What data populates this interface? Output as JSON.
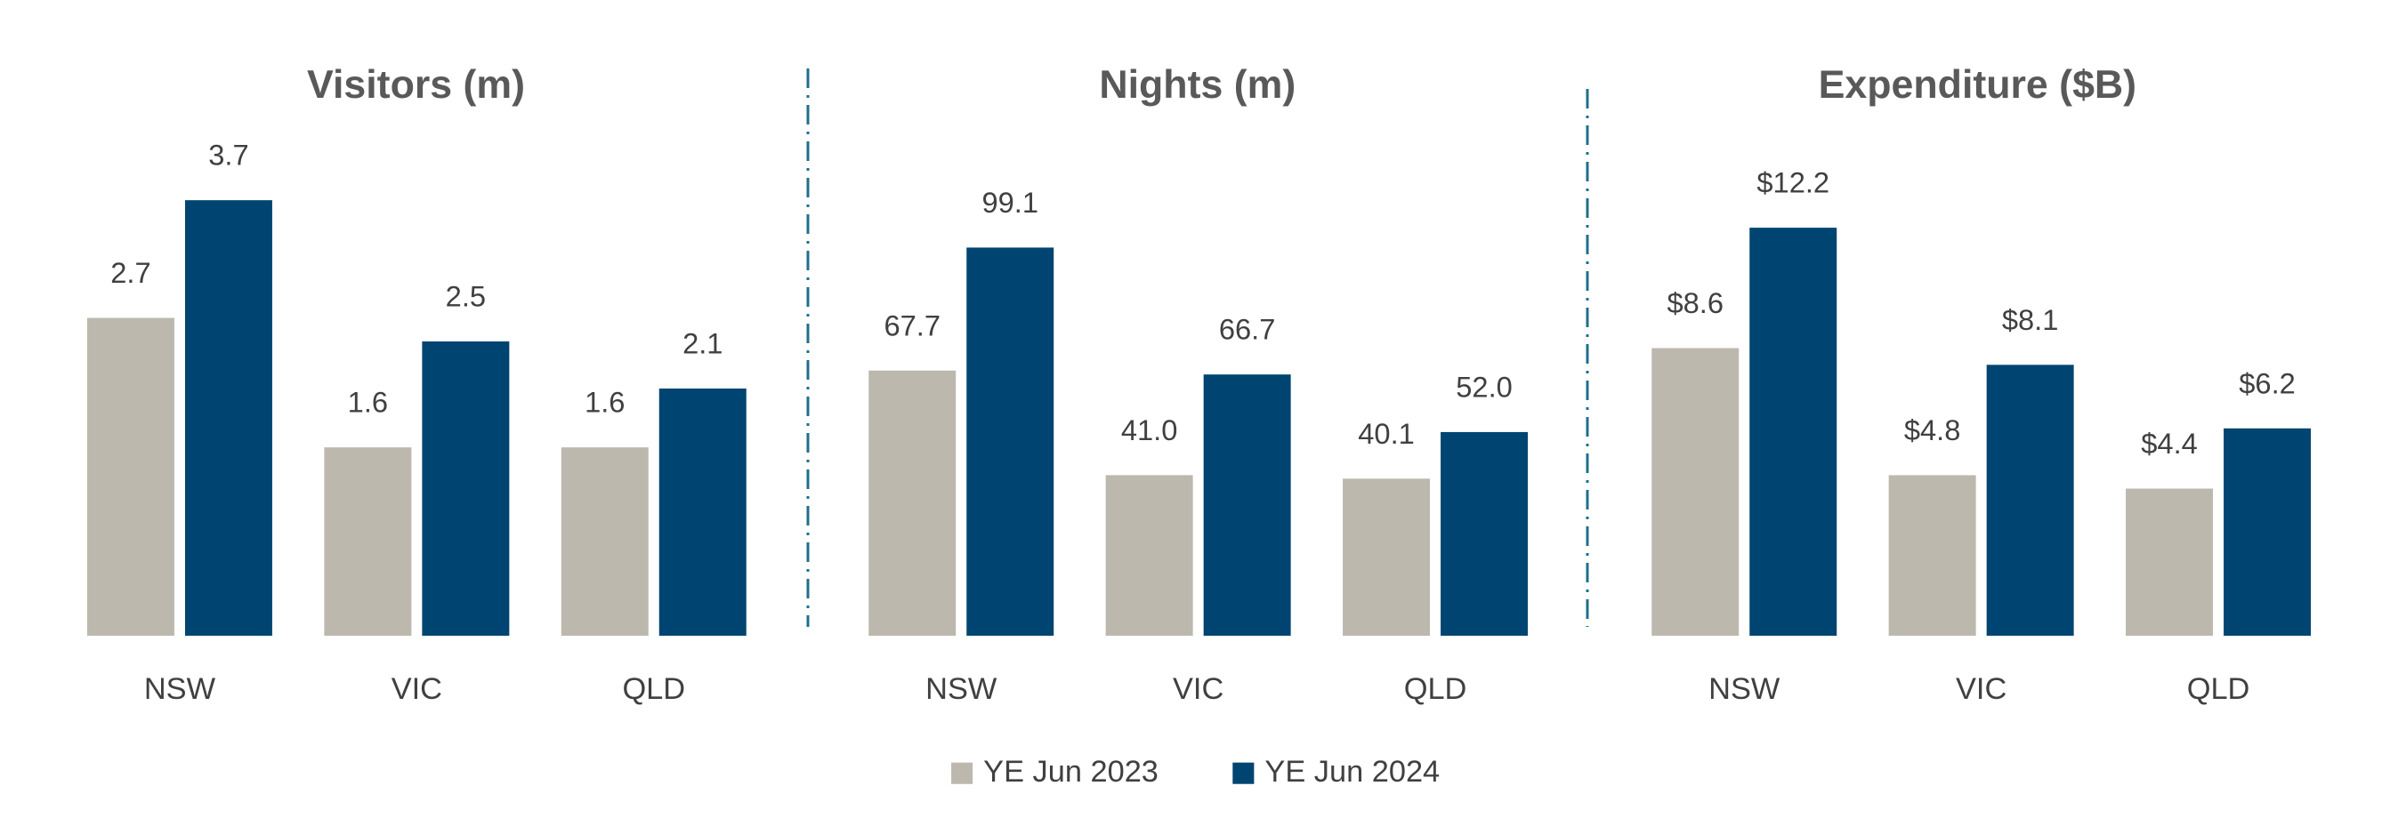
{
  "chart_data": [
    {
      "type": "bar",
      "title": "Visitors (m)",
      "categories": [
        "NSW",
        "VIC",
        "QLD"
      ],
      "series": [
        {
          "color": "#bcb8ad",
          "values": [
            2.7,
            1.6,
            1.6
          ]
        },
        {
          "color": "#004571",
          "values": [
            3.7,
            2.5,
            2.1
          ]
        }
      ]
    },
    {
      "type": "bar",
      "title": "Nights (m)",
      "categories": [
        "NSW",
        "VIC",
        "QLD"
      ],
      "series": [
        {
          "color": "#bcb8ad",
          "values": [
            67.7,
            41.0,
            40.1
          ],
          "value_labels": [
            "67.7",
            "41.0",
            "40.1"
          ]
        },
        {
          "color": "#004571",
          "values": [
            99.1,
            66.7,
            52.0
          ],
          "value_labels": [
            "99.1",
            "66.7",
            "52.0"
          ]
        }
      ]
    },
    {
      "type": "bar",
      "title": "Expenditure ($B)",
      "categories": [
        "NSW",
        "VIC",
        "QLD"
      ],
      "series": [
        {
          "color": "#bcb8ad",
          "values": [
            8.6,
            4.8,
            4.4
          ],
          "value_labels": [
            "$8.6",
            "$4.8",
            "$4.4"
          ]
        },
        {
          "color": "#004571",
          "values": [
            12.2,
            8.1,
            6.2
          ],
          "value_labels": [
            "$12.2",
            "$8.1",
            "$6.2"
          ]
        }
      ]
    }
  ],
  "legend": [
    "YE Jun 2023",
    "YE Jun 2024"
  ]
}
